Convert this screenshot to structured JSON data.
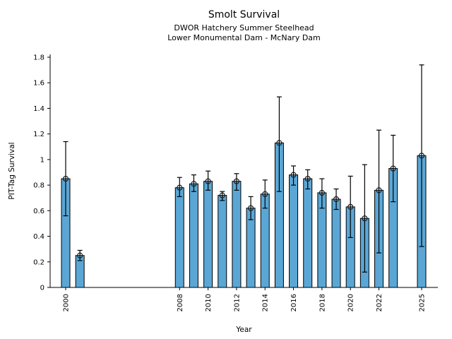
{
  "chart_data": {
    "type": "bar",
    "title": "Smolt Survival",
    "subtitle1": "DWOR Hatchery Summer Steelhead",
    "subtitle2": "Lower Monumental Dam - McNary Dam",
    "xlabel": "Year",
    "ylabel": "PIT-Tag Survival",
    "ylim": [
      0,
      1.8
    ],
    "grid": false,
    "legend": "none",
    "bar_color": "#5AA7D6",
    "bar_edge_color": "#000000",
    "errorbar_color": "#000000",
    "marker": "open-circle",
    "yticks": [
      {
        "value": 0,
        "label": "0"
      },
      {
        "value": 0.2,
        "label": "0.2"
      },
      {
        "value": 0.4,
        "label": "0.4"
      },
      {
        "value": 0.6,
        "label": "0.6"
      },
      {
        "value": 0.8,
        "label": "0.8"
      },
      {
        "value": 1,
        "label": "1"
      },
      {
        "value": 1.2,
        "label": "1.2"
      },
      {
        "value": 1.4,
        "label": "1.4"
      },
      {
        "value": 1.6,
        "label": "1.6"
      },
      {
        "value": 1.8,
        "label": "1.8"
      }
    ],
    "xticks": [
      {
        "value": 2000,
        "label": "2000"
      },
      {
        "value": 2008,
        "label": "2008"
      },
      {
        "value": 2010,
        "label": "2010"
      },
      {
        "value": 2012,
        "label": "2012"
      },
      {
        "value": 2014,
        "label": "2014"
      },
      {
        "value": 2016,
        "label": "2016"
      },
      {
        "value": 2018,
        "label": "2018"
      },
      {
        "value": 2020,
        "label": "2020"
      },
      {
        "value": 2022,
        "label": "2022"
      },
      {
        "value": 2025,
        "label": "2025"
      }
    ],
    "points": [
      {
        "year": 2000,
        "value": 0.85,
        "err_low": 0.56,
        "err_high": 1.14
      },
      {
        "year": 2001,
        "value": 0.25,
        "err_low": 0.21,
        "err_high": 0.29
      },
      {
        "year": 2008,
        "value": 0.78,
        "err_low": 0.71,
        "err_high": 0.86
      },
      {
        "year": 2009,
        "value": 0.81,
        "err_low": 0.75,
        "err_high": 0.88
      },
      {
        "year": 2010,
        "value": 0.83,
        "err_low": 0.76,
        "err_high": 0.91
      },
      {
        "year": 2011,
        "value": 0.72,
        "err_low": 0.68,
        "err_high": 0.75
      },
      {
        "year": 2012,
        "value": 0.83,
        "err_low": 0.76,
        "err_high": 0.89
      },
      {
        "year": 2013,
        "value": 0.62,
        "err_low": 0.53,
        "err_high": 0.71
      },
      {
        "year": 2014,
        "value": 0.73,
        "err_low": 0.62,
        "err_high": 0.84
      },
      {
        "year": 2015,
        "value": 1.13,
        "err_low": 0.75,
        "err_high": 1.49
      },
      {
        "year": 2016,
        "value": 0.88,
        "err_low": 0.8,
        "err_high": 0.95
      },
      {
        "year": 2017,
        "value": 0.85,
        "err_low": 0.77,
        "err_high": 0.92
      },
      {
        "year": 2018,
        "value": 0.74,
        "err_low": 0.62,
        "err_high": 0.85
      },
      {
        "year": 2019,
        "value": 0.69,
        "err_low": 0.61,
        "err_high": 0.77
      },
      {
        "year": 2020,
        "value": 0.63,
        "err_low": 0.39,
        "err_high": 0.87
      },
      {
        "year": 2021,
        "value": 0.54,
        "err_low": 0.12,
        "err_high": 0.96
      },
      {
        "year": 2022,
        "value": 0.76,
        "err_low": 0.27,
        "err_high": 1.23
      },
      {
        "year": 2023,
        "value": 0.93,
        "err_low": 0.67,
        "err_high": 1.19
      },
      {
        "year": 2025,
        "value": 1.03,
        "err_low": 0.32,
        "err_high": 1.74
      }
    ]
  }
}
